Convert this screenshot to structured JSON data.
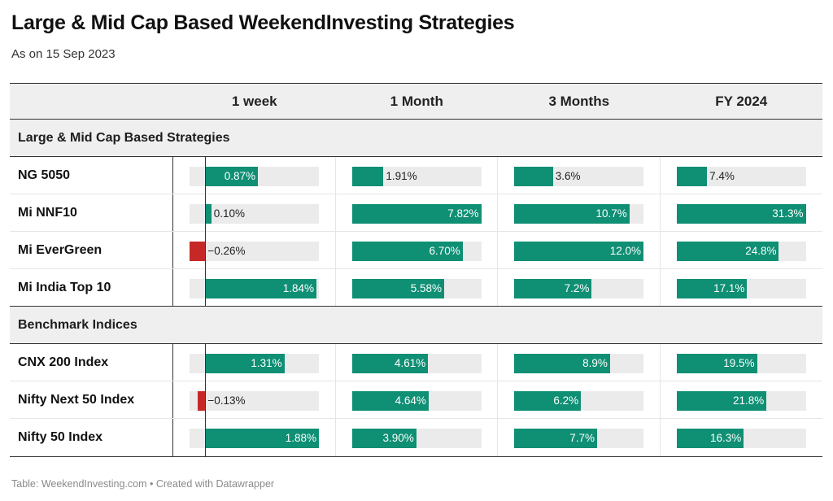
{
  "title": "Large & Mid Cap Based WeekendInvesting Strategies",
  "subtitle": "As on 15 Sep 2023",
  "footer": "Table: WeekendInvesting.com • Created with Datawrapper",
  "colors": {
    "positive": "#0f8f74",
    "negative": "#c62828",
    "track": "#ebebeb",
    "header_bg": "#efefef"
  },
  "chart_data": {
    "type": "table",
    "columns": [
      "1 week",
      "1 Month",
      "3 Months",
      "FY 2024"
    ],
    "column_ranges": [
      [
        -0.26,
        1.88
      ],
      [
        0,
        7.82
      ],
      [
        0,
        12.0
      ],
      [
        0,
        31.3
      ]
    ],
    "groups": [
      {
        "name": "Large & Mid Cap Based Strategies",
        "rows": [
          {
            "name": "NG 5050",
            "values": [
              0.87,
              1.91,
              3.6,
              7.4
            ],
            "labels": [
              "0.87%",
              "1.91%",
              "3.6%",
              "7.4%"
            ]
          },
          {
            "name": "Mi NNF10",
            "values": [
              0.1,
              7.82,
              10.7,
              31.3
            ],
            "labels": [
              "0.10%",
              "7.82%",
              "10.7%",
              "31.3%"
            ]
          },
          {
            "name": "Mi EverGreen",
            "values": [
              -0.26,
              6.7,
              12.0,
              24.8
            ],
            "labels": [
              "−0.26%",
              "6.70%",
              "12.0%",
              "24.8%"
            ]
          },
          {
            "name": "Mi India Top 10",
            "values": [
              1.84,
              5.58,
              7.2,
              17.1
            ],
            "labels": [
              "1.84%",
              "5.58%",
              "7.2%",
              "17.1%"
            ]
          }
        ]
      },
      {
        "name": "Benchmark Indices",
        "rows": [
          {
            "name": "CNX 200 Index",
            "values": [
              1.31,
              4.61,
              8.9,
              19.5
            ],
            "labels": [
              "1.31%",
              "4.61%",
              "8.9%",
              "19.5%"
            ]
          },
          {
            "name": "Nifty Next 50 Index",
            "values": [
              -0.13,
              4.64,
              6.2,
              21.8
            ],
            "labels": [
              "−0.13%",
              "4.64%",
              "6.2%",
              "21.8%"
            ]
          },
          {
            "name": "Nifty 50 Index",
            "values": [
              1.88,
              3.9,
              7.7,
              16.3
            ],
            "labels": [
              "1.88%",
              "3.90%",
              "7.7%",
              "16.3%"
            ]
          }
        ]
      }
    ]
  }
}
